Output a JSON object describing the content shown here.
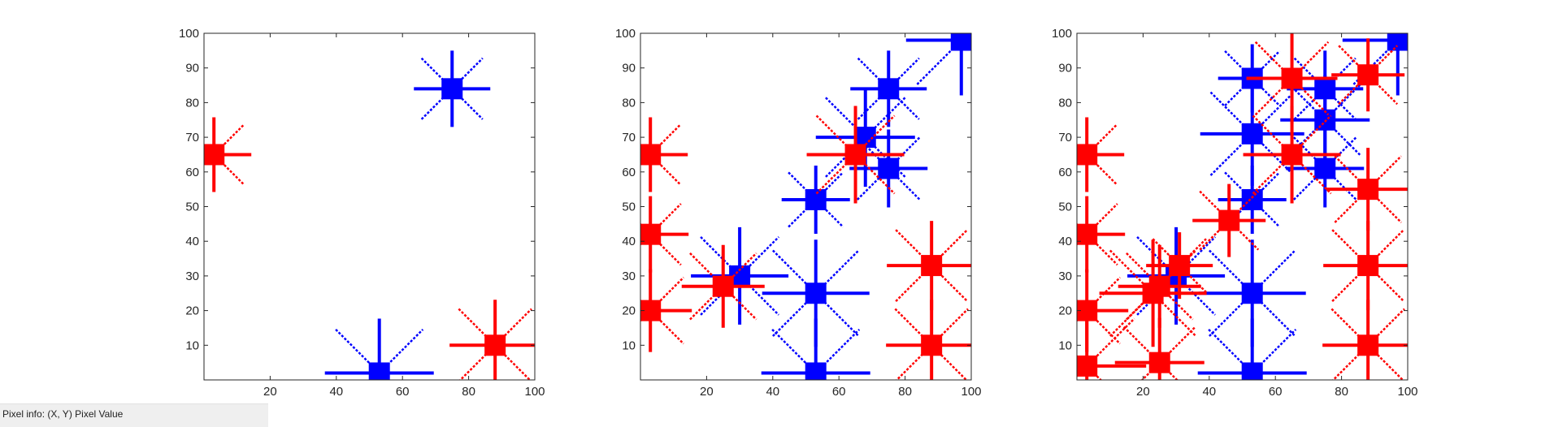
{
  "status_bar": {
    "text": "Pixel info: (X, Y)  Pixel Value"
  },
  "colors": {
    "red": "#ff0000",
    "blue": "#0000ff",
    "axis": "#262626",
    "tick_label": "#262626"
  },
  "chart_data": [
    {
      "type": "scatter",
      "title": "",
      "xlim": [
        0,
        100
      ],
      "ylim": [
        0,
        100
      ],
      "xticks": [
        20,
        40,
        60,
        80,
        100
      ],
      "yticks": [
        10,
        20,
        30,
        40,
        50,
        60,
        70,
        80,
        90,
        100
      ],
      "xticklabels": [
        "20",
        "40",
        "60",
        "80",
        "100"
      ],
      "yticklabels": [
        "10",
        "20",
        "30",
        "40",
        "50",
        "60",
        "70",
        "80",
        "90",
        "100"
      ],
      "series": [
        {
          "name": "blue",
          "color": "blue",
          "points": [
            [
              53,
              2
            ],
            [
              75,
              84
            ]
          ]
        },
        {
          "name": "red",
          "color": "red",
          "points": [
            [
              3,
              65
            ],
            [
              88,
              10
            ]
          ]
        }
      ]
    },
    {
      "type": "scatter",
      "title": "",
      "xlim": [
        0,
        100
      ],
      "ylim": [
        0,
        100
      ],
      "xticks": [
        20,
        40,
        60,
        80,
        100
      ],
      "yticks": [
        10,
        20,
        30,
        40,
        50,
        60,
        70,
        80,
        90,
        100
      ],
      "xticklabels": [
        "20",
        "40",
        "60",
        "80",
        "100"
      ],
      "yticklabels": [
        "10",
        "20",
        "30",
        "40",
        "50",
        "60",
        "70",
        "80",
        "90",
        "100"
      ],
      "series": [
        {
          "name": "blue",
          "color": "blue",
          "points": [
            [
              53,
              2
            ],
            [
              75,
              84
            ],
            [
              97,
              98
            ],
            [
              68,
              70
            ],
            [
              75,
              61
            ],
            [
              53,
              52
            ],
            [
              53,
              25
            ],
            [
              30,
              30
            ]
          ]
        },
        {
          "name": "red",
          "color": "red",
          "points": [
            [
              3,
              65
            ],
            [
              88,
              10
            ],
            [
              3,
              42
            ],
            [
              3,
              20
            ],
            [
              25,
              27
            ],
            [
              65,
              65
            ],
            [
              88,
              33
            ]
          ]
        }
      ]
    },
    {
      "type": "scatter",
      "title": "",
      "xlim": [
        0,
        100
      ],
      "ylim": [
        0,
        100
      ],
      "xticks": [
        20,
        40,
        60,
        80,
        100
      ],
      "yticks": [
        10,
        20,
        30,
        40,
        50,
        60,
        70,
        80,
        90,
        100
      ],
      "xticklabels": [
        "20",
        "40",
        "60",
        "80",
        "100"
      ],
      "yticklabels": [
        "10",
        "20",
        "30",
        "40",
        "50",
        "60",
        "70",
        "80",
        "90",
        "100"
      ],
      "series": [
        {
          "name": "blue",
          "color": "blue",
          "points": [
            [
              53,
              2
            ],
            [
              75,
              84
            ],
            [
              97,
              98
            ],
            [
              53,
              87
            ],
            [
              53,
              71
            ],
            [
              75,
              61
            ],
            [
              53,
              52
            ],
            [
              53,
              25
            ],
            [
              30,
              30
            ],
            [
              75,
              75
            ]
          ]
        },
        {
          "name": "red",
          "color": "red",
          "points": [
            [
              3,
              65
            ],
            [
              88,
              10
            ],
            [
              3,
              42
            ],
            [
              3,
              20
            ],
            [
              3,
              4
            ],
            [
              25,
              5
            ],
            [
              23,
              25
            ],
            [
              25,
              27
            ],
            [
              31,
              33
            ],
            [
              46,
              46
            ],
            [
              65,
              65
            ],
            [
              65,
              87
            ],
            [
              88,
              88
            ],
            [
              88,
              55
            ],
            [
              88,
              33
            ]
          ]
        }
      ]
    }
  ]
}
